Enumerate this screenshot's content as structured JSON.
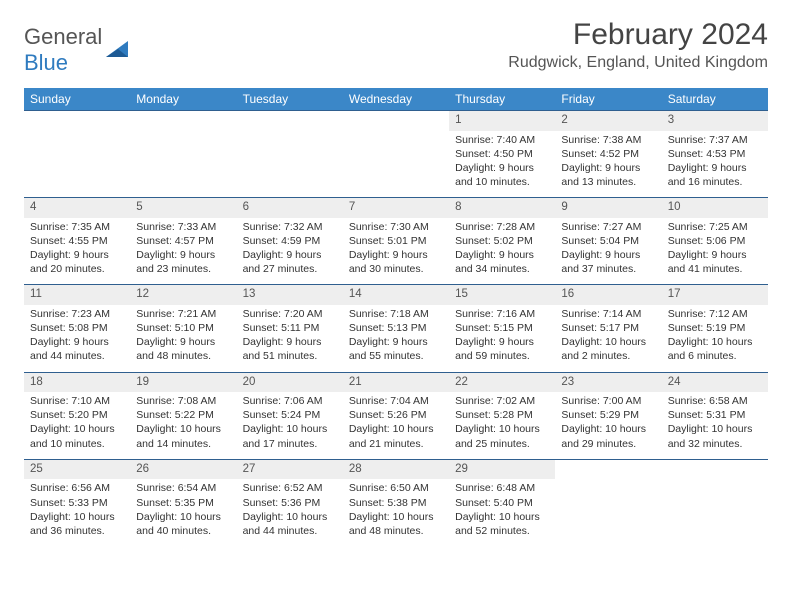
{
  "logo": {
    "text1": "General",
    "text2": "Blue"
  },
  "title": "February 2024",
  "location": "Rudgwick, England, United Kingdom",
  "days": [
    "Sunday",
    "Monday",
    "Tuesday",
    "Wednesday",
    "Thursday",
    "Friday",
    "Saturday"
  ],
  "colors": {
    "header_bg": "#3b87c8",
    "header_text": "#ffffff",
    "daynum_bg": "#eeeeee",
    "row_border": "#2f5f8f",
    "body_text": "#333333",
    "logo_gray": "#555555",
    "logo_blue": "#2f7bbf"
  },
  "typography": {
    "title_fontsize": 30,
    "location_fontsize": 16,
    "dayheader_fontsize": 12,
    "cell_fontsize": 10.5
  },
  "weeks": [
    [
      null,
      null,
      null,
      null,
      {
        "n": "1",
        "sr": "Sunrise: 7:40 AM",
        "ss": "Sunset: 4:50 PM",
        "d1": "Daylight: 9 hours",
        "d2": "and 10 minutes."
      },
      {
        "n": "2",
        "sr": "Sunrise: 7:38 AM",
        "ss": "Sunset: 4:52 PM",
        "d1": "Daylight: 9 hours",
        "d2": "and 13 minutes."
      },
      {
        "n": "3",
        "sr": "Sunrise: 7:37 AM",
        "ss": "Sunset: 4:53 PM",
        "d1": "Daylight: 9 hours",
        "d2": "and 16 minutes."
      }
    ],
    [
      {
        "n": "4",
        "sr": "Sunrise: 7:35 AM",
        "ss": "Sunset: 4:55 PM",
        "d1": "Daylight: 9 hours",
        "d2": "and 20 minutes."
      },
      {
        "n": "5",
        "sr": "Sunrise: 7:33 AM",
        "ss": "Sunset: 4:57 PM",
        "d1": "Daylight: 9 hours",
        "d2": "and 23 minutes."
      },
      {
        "n": "6",
        "sr": "Sunrise: 7:32 AM",
        "ss": "Sunset: 4:59 PM",
        "d1": "Daylight: 9 hours",
        "d2": "and 27 minutes."
      },
      {
        "n": "7",
        "sr": "Sunrise: 7:30 AM",
        "ss": "Sunset: 5:01 PM",
        "d1": "Daylight: 9 hours",
        "d2": "and 30 minutes."
      },
      {
        "n": "8",
        "sr": "Sunrise: 7:28 AM",
        "ss": "Sunset: 5:02 PM",
        "d1": "Daylight: 9 hours",
        "d2": "and 34 minutes."
      },
      {
        "n": "9",
        "sr": "Sunrise: 7:27 AM",
        "ss": "Sunset: 5:04 PM",
        "d1": "Daylight: 9 hours",
        "d2": "and 37 minutes."
      },
      {
        "n": "10",
        "sr": "Sunrise: 7:25 AM",
        "ss": "Sunset: 5:06 PM",
        "d1": "Daylight: 9 hours",
        "d2": "and 41 minutes."
      }
    ],
    [
      {
        "n": "11",
        "sr": "Sunrise: 7:23 AM",
        "ss": "Sunset: 5:08 PM",
        "d1": "Daylight: 9 hours",
        "d2": "and 44 minutes."
      },
      {
        "n": "12",
        "sr": "Sunrise: 7:21 AM",
        "ss": "Sunset: 5:10 PM",
        "d1": "Daylight: 9 hours",
        "d2": "and 48 minutes."
      },
      {
        "n": "13",
        "sr": "Sunrise: 7:20 AM",
        "ss": "Sunset: 5:11 PM",
        "d1": "Daylight: 9 hours",
        "d2": "and 51 minutes."
      },
      {
        "n": "14",
        "sr": "Sunrise: 7:18 AM",
        "ss": "Sunset: 5:13 PM",
        "d1": "Daylight: 9 hours",
        "d2": "and 55 minutes."
      },
      {
        "n": "15",
        "sr": "Sunrise: 7:16 AM",
        "ss": "Sunset: 5:15 PM",
        "d1": "Daylight: 9 hours",
        "d2": "and 59 minutes."
      },
      {
        "n": "16",
        "sr": "Sunrise: 7:14 AM",
        "ss": "Sunset: 5:17 PM",
        "d1": "Daylight: 10 hours",
        "d2": "and 2 minutes."
      },
      {
        "n": "17",
        "sr": "Sunrise: 7:12 AM",
        "ss": "Sunset: 5:19 PM",
        "d1": "Daylight: 10 hours",
        "d2": "and 6 minutes."
      }
    ],
    [
      {
        "n": "18",
        "sr": "Sunrise: 7:10 AM",
        "ss": "Sunset: 5:20 PM",
        "d1": "Daylight: 10 hours",
        "d2": "and 10 minutes."
      },
      {
        "n": "19",
        "sr": "Sunrise: 7:08 AM",
        "ss": "Sunset: 5:22 PM",
        "d1": "Daylight: 10 hours",
        "d2": "and 14 minutes."
      },
      {
        "n": "20",
        "sr": "Sunrise: 7:06 AM",
        "ss": "Sunset: 5:24 PM",
        "d1": "Daylight: 10 hours",
        "d2": "and 17 minutes."
      },
      {
        "n": "21",
        "sr": "Sunrise: 7:04 AM",
        "ss": "Sunset: 5:26 PM",
        "d1": "Daylight: 10 hours",
        "d2": "and 21 minutes."
      },
      {
        "n": "22",
        "sr": "Sunrise: 7:02 AM",
        "ss": "Sunset: 5:28 PM",
        "d1": "Daylight: 10 hours",
        "d2": "and 25 minutes."
      },
      {
        "n": "23",
        "sr": "Sunrise: 7:00 AM",
        "ss": "Sunset: 5:29 PM",
        "d1": "Daylight: 10 hours",
        "d2": "and 29 minutes."
      },
      {
        "n": "24",
        "sr": "Sunrise: 6:58 AM",
        "ss": "Sunset: 5:31 PM",
        "d1": "Daylight: 10 hours",
        "d2": "and 32 minutes."
      }
    ],
    [
      {
        "n": "25",
        "sr": "Sunrise: 6:56 AM",
        "ss": "Sunset: 5:33 PM",
        "d1": "Daylight: 10 hours",
        "d2": "and 36 minutes."
      },
      {
        "n": "26",
        "sr": "Sunrise: 6:54 AM",
        "ss": "Sunset: 5:35 PM",
        "d1": "Daylight: 10 hours",
        "d2": "and 40 minutes."
      },
      {
        "n": "27",
        "sr": "Sunrise: 6:52 AM",
        "ss": "Sunset: 5:36 PM",
        "d1": "Daylight: 10 hours",
        "d2": "and 44 minutes."
      },
      {
        "n": "28",
        "sr": "Sunrise: 6:50 AM",
        "ss": "Sunset: 5:38 PM",
        "d1": "Daylight: 10 hours",
        "d2": "and 48 minutes."
      },
      {
        "n": "29",
        "sr": "Sunrise: 6:48 AM",
        "ss": "Sunset: 5:40 PM",
        "d1": "Daylight: 10 hours",
        "d2": "and 52 minutes."
      },
      null,
      null
    ]
  ]
}
